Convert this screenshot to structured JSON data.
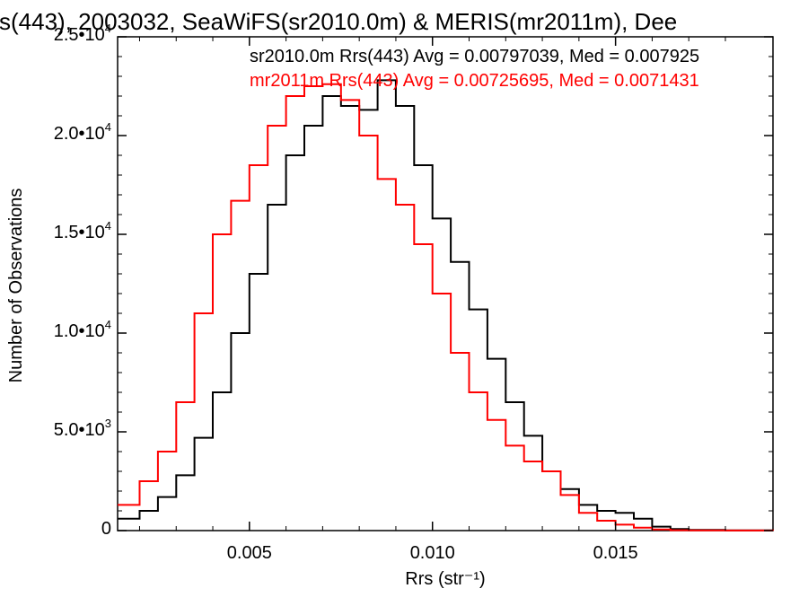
{
  "chart_data": {
    "type": "line",
    "title": "s(443), 2003032, SeaWiFS(sr2010.0m) & MERIS(mr2011m), Dee",
    "xlabel": "Rrs (str⁻¹)",
    "ylabel": "Number of Observations",
    "xlim": [
      0.0014,
      0.0193
    ],
    "ylim": [
      0,
      25000
    ],
    "x_ticks": [
      {
        "value": 0.005,
        "label": "0.005"
      },
      {
        "value": 0.01,
        "label": "0.010"
      },
      {
        "value": 0.015,
        "label": "0.015"
      }
    ],
    "y_ticks": [
      {
        "value": 0,
        "label": "0",
        "exp": ""
      },
      {
        "value": 5000,
        "label": "5.0•10",
        "exp": "3"
      },
      {
        "value": 10000,
        "label": "1.0•10",
        "exp": "4"
      },
      {
        "value": 15000,
        "label": "1.5•10",
        "exp": "4"
      },
      {
        "value": 20000,
        "label": "2.0•10",
        "exp": "4"
      },
      {
        "value": 25000,
        "label": "2.5•10",
        "exp": "4"
      }
    ],
    "grid": false,
    "annotations": [
      {
        "text": "sr2010.0m Rrs(443) Avg = 0.00797039, Med = 0.007925",
        "color": "#000000"
      },
      {
        "text": "mr2011m Rrs(443) Avg = 0.00725695, Med = 0.0071431",
        "color": "#ff0000"
      }
    ],
    "series": [
      {
        "name": "sr2010.0m",
        "color": "#000000",
        "x": [
          0.0014,
          0.002,
          0.0025,
          0.003,
          0.0035,
          0.004,
          0.0045,
          0.005,
          0.0055,
          0.006,
          0.0065,
          0.007,
          0.0075,
          0.008,
          0.0085,
          0.009,
          0.0095,
          0.01,
          0.0105,
          0.011,
          0.0115,
          0.012,
          0.0125,
          0.013,
          0.0135,
          0.014,
          0.0145,
          0.015,
          0.0155,
          0.016,
          0.0165,
          0.017,
          0.018,
          0.0193
        ],
        "y": [
          600,
          1000,
          1700,
          2800,
          4700,
          7000,
          10000,
          13000,
          16500,
          19000,
          20500,
          22000,
          21500,
          21300,
          22800,
          21500,
          18500,
          15800,
          13600,
          11200,
          8700,
          6500,
          4800,
          3000,
          2100,
          1300,
          1000,
          900,
          600,
          200,
          80,
          30,
          10,
          0
        ]
      },
      {
        "name": "mr2011m",
        "color": "#ff0000",
        "x": [
          0.0014,
          0.002,
          0.0025,
          0.003,
          0.0035,
          0.004,
          0.0045,
          0.005,
          0.0055,
          0.006,
          0.0065,
          0.007,
          0.0075,
          0.008,
          0.0085,
          0.009,
          0.0095,
          0.01,
          0.0105,
          0.011,
          0.0115,
          0.012,
          0.0125,
          0.013,
          0.0135,
          0.014,
          0.0145,
          0.015,
          0.0155,
          0.016,
          0.0165,
          0.017,
          0.018,
          0.0193
        ],
        "y": [
          1300,
          2500,
          4000,
          6500,
          11000,
          15000,
          16700,
          18500,
          20500,
          22000,
          22500,
          22600,
          21800,
          20000,
          17800,
          16500,
          14500,
          12000,
          9000,
          7000,
          5600,
          4300,
          3500,
          3000,
          1800,
          900,
          500,
          300,
          150,
          60,
          20,
          10,
          5,
          0
        ]
      }
    ]
  }
}
